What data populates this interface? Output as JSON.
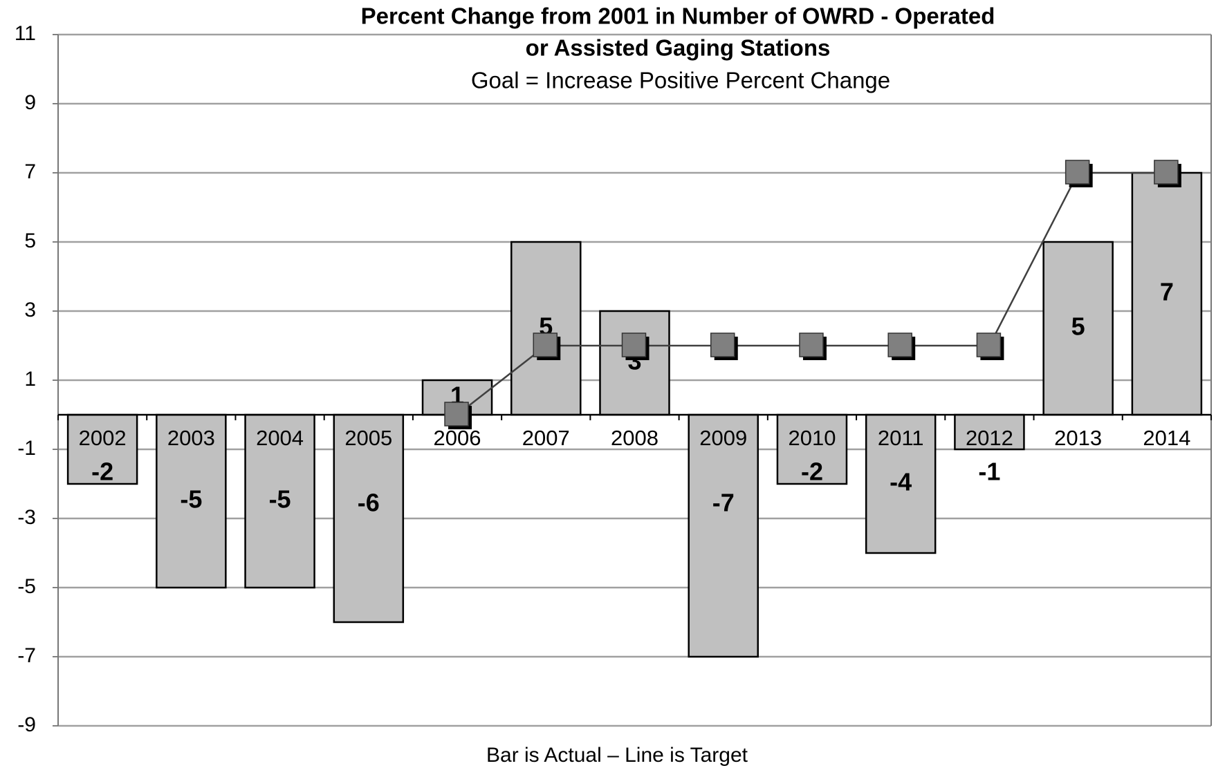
{
  "chart_data": {
    "type": "bar-line",
    "title": [
      "Percent Change from 2001 in Number of OWRD - Operated",
      "or Assisted Gaging Stations"
    ],
    "subtitle": "Goal = Increase Positive Percent Change",
    "caption": "Bar is Actual – Line is Target",
    "categories": [
      "2002",
      "2003",
      "2004",
      "2005",
      "2006",
      "2007",
      "2008",
      "2009",
      "2010",
      "2011",
      "2012",
      "2013",
      "2014"
    ],
    "series": [
      {
        "type": "bar",
        "color": "#c0c0c0",
        "values": [
          -2,
          -5,
          -5,
          -6,
          1,
          5,
          3,
          -7,
          -2,
          -4,
          -1,
          5,
          7
        ]
      },
      {
        "type": "line",
        "color": "#808080",
        "values": [
          null,
          null,
          null,
          null,
          0,
          2,
          2,
          2,
          2,
          2,
          2,
          7,
          7
        ]
      }
    ],
    "ylim": [
      -9,
      11
    ],
    "yticks": [
      -9,
      -7,
      -5,
      -3,
      -1,
      1,
      3,
      5,
      7,
      9,
      11
    ],
    "grid": true
  }
}
